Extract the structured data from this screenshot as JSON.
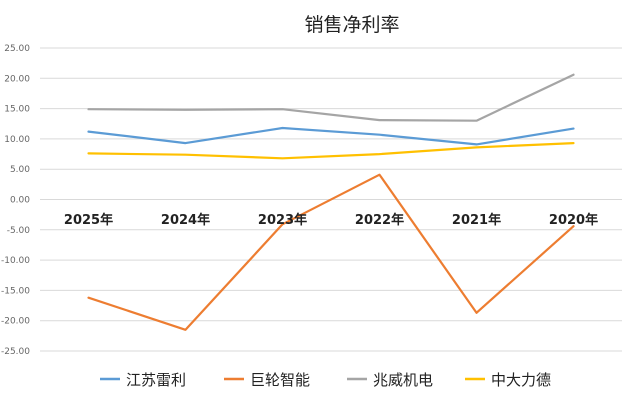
{
  "chart_data": {
    "type": "line",
    "title": "销售净利率",
    "xlabel": "",
    "ylabel": "",
    "categories": [
      "2025年",
      "2024年",
      "2023年",
      "2022年",
      "2021年",
      "2020年"
    ],
    "ylim": [
      -25,
      25
    ],
    "yticks": [
      "25.00",
      "20.00",
      "15.00",
      "10.00",
      "5.00",
      "0.00",
      "-5.00",
      "-10.00",
      "-15.00",
      "-20.00",
      "-25.00"
    ],
    "ytick_values": [
      25,
      20,
      15,
      10,
      5,
      0,
      -5,
      -10,
      -15,
      -20,
      -25
    ],
    "grid": true,
    "legend_position": "bottom",
    "series": [
      {
        "name": "江苏雷利",
        "color": "#5b9bd5",
        "values": [
          11.2,
          9.3,
          11.8,
          10.7,
          9.1,
          11.7
        ]
      },
      {
        "name": "巨轮智能",
        "color": "#ed7d31",
        "values": [
          -16.2,
          -21.5,
          -4.1,
          4.1,
          -18.7,
          -4.4
        ]
      },
      {
        "name": "兆威机电",
        "color": "#a5a5a5",
        "values": [
          14.9,
          14.8,
          14.9,
          13.1,
          13.0,
          20.6
        ]
      },
      {
        "name": "中大力德",
        "color": "#ffc000",
        "values": [
          7.6,
          7.4,
          6.8,
          7.5,
          8.6,
          9.3
        ]
      }
    ]
  }
}
